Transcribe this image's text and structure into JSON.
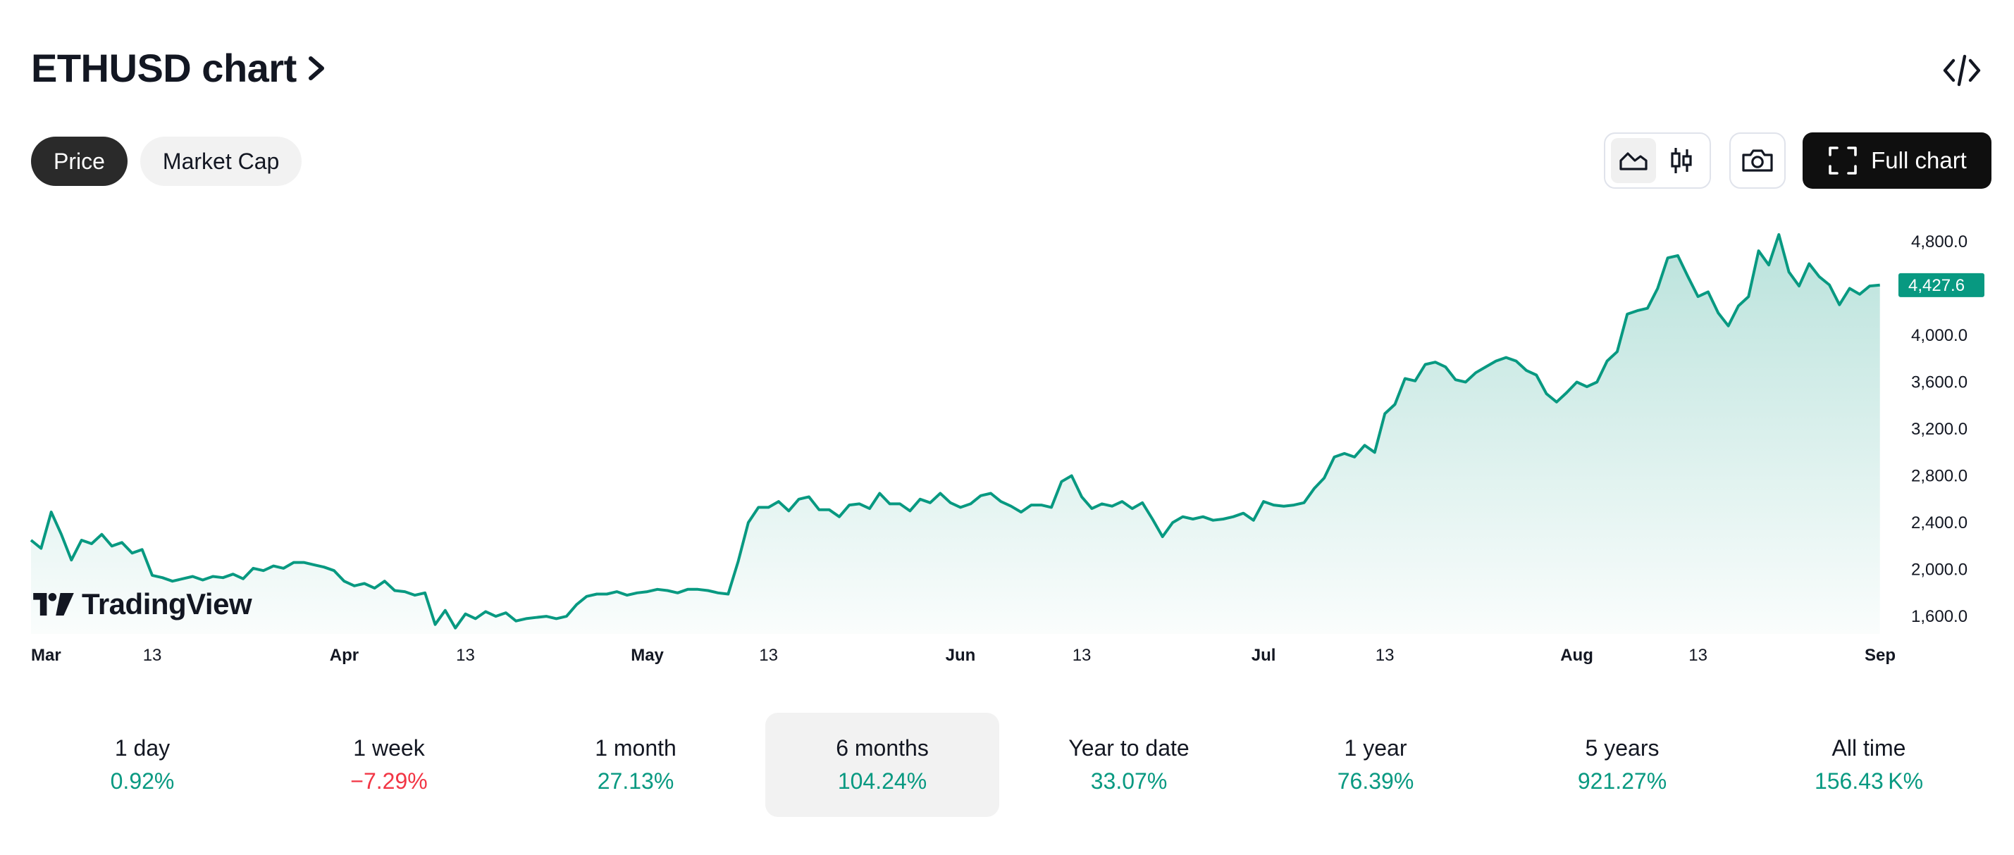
{
  "header": {
    "title": "ETHUSD chart"
  },
  "tabs": [
    {
      "label": "Price",
      "active": true
    },
    {
      "label": "Market Cap",
      "active": false
    }
  ],
  "toolbar": {
    "full_chart_label": "Full chart",
    "icons": [
      "area-chart-icon",
      "candles-icon",
      "camera-icon",
      "fullscreen-icon",
      "embed-code-icon"
    ]
  },
  "colors": {
    "line": "#089981",
    "positive": "#089981",
    "negative": "#f23645",
    "dark": "#0f0f0f"
  },
  "chart_data": {
    "type": "area",
    "title": "ETHUSD",
    "ylim": [
      1450,
      4950
    ],
    "y_ticks": [
      {
        "value": 4800,
        "label": "4,800.0"
      },
      {
        "value": 4000,
        "label": "4,000.0"
      },
      {
        "value": 3600,
        "label": "3,600.0"
      },
      {
        "value": 3200,
        "label": "3,200.0"
      },
      {
        "value": 2800,
        "label": "2,800.0"
      },
      {
        "value": 2400,
        "label": "2,400.0"
      },
      {
        "value": 2000,
        "label": "2,000.0"
      },
      {
        "value": 1600,
        "label": "1,600.0"
      }
    ],
    "last_price": 4427.6,
    "last_price_label": "4,427.6",
    "x_ticks": [
      {
        "day": 0,
        "label": "Mar",
        "month": true
      },
      {
        "day": 12,
        "label": "13",
        "month": false
      },
      {
        "day": 31,
        "label": "Apr",
        "month": true
      },
      {
        "day": 43,
        "label": "13",
        "month": false
      },
      {
        "day": 61,
        "label": "May",
        "month": true
      },
      {
        "day": 73,
        "label": "13",
        "month": false
      },
      {
        "day": 92,
        "label": "Jun",
        "month": true
      },
      {
        "day": 104,
        "label": "13",
        "month": false
      },
      {
        "day": 122,
        "label": "Jul",
        "month": true
      },
      {
        "day": 134,
        "label": "13",
        "month": false
      },
      {
        "day": 153,
        "label": "Aug",
        "month": true
      },
      {
        "day": 165,
        "label": "13",
        "month": false
      },
      {
        "day": 184,
        "label": "Sep",
        "month": true
      }
    ],
    "x_range": [
      0,
      184
    ],
    "series": [
      {
        "name": "ETHUSD",
        "points": [
          [
            0,
            2250
          ],
          [
            1,
            2180
          ],
          [
            2,
            2490
          ],
          [
            3,
            2300
          ],
          [
            4,
            2080
          ],
          [
            5,
            2250
          ],
          [
            6,
            2220
          ],
          [
            7,
            2300
          ],
          [
            8,
            2200
          ],
          [
            9,
            2230
          ],
          [
            10,
            2140
          ],
          [
            11,
            2170
          ],
          [
            12,
            1950
          ],
          [
            13,
            1930
          ],
          [
            14,
            1900
          ],
          [
            15,
            1920
          ],
          [
            16,
            1940
          ],
          [
            17,
            1910
          ],
          [
            18,
            1940
          ],
          [
            19,
            1930
          ],
          [
            20,
            1960
          ],
          [
            21,
            1920
          ],
          [
            22,
            2010
          ],
          [
            23,
            1990
          ],
          [
            24,
            2030
          ],
          [
            25,
            2010
          ],
          [
            26,
            2060
          ],
          [
            27,
            2060
          ],
          [
            28,
            2040
          ],
          [
            29,
            2020
          ],
          [
            30,
            1990
          ],
          [
            31,
            1900
          ],
          [
            32,
            1860
          ],
          [
            33,
            1880
          ],
          [
            34,
            1840
          ],
          [
            35,
            1900
          ],
          [
            36,
            1820
          ],
          [
            37,
            1810
          ],
          [
            38,
            1780
          ],
          [
            39,
            1800
          ],
          [
            40,
            1530
          ],
          [
            41,
            1650
          ],
          [
            42,
            1500
          ],
          [
            43,
            1620
          ],
          [
            44,
            1580
          ],
          [
            45,
            1640
          ],
          [
            46,
            1600
          ],
          [
            47,
            1630
          ],
          [
            48,
            1560
          ],
          [
            49,
            1580
          ],
          [
            50,
            1590
          ],
          [
            51,
            1600
          ],
          [
            52,
            1580
          ],
          [
            53,
            1600
          ],
          [
            54,
            1700
          ],
          [
            55,
            1770
          ],
          [
            56,
            1790
          ],
          [
            57,
            1790
          ],
          [
            58,
            1810
          ],
          [
            59,
            1780
          ],
          [
            60,
            1800
          ],
          [
            61,
            1810
          ],
          [
            62,
            1830
          ],
          [
            63,
            1820
          ],
          [
            64,
            1800
          ],
          [
            65,
            1830
          ],
          [
            66,
            1830
          ],
          [
            67,
            1820
          ],
          [
            68,
            1800
          ],
          [
            69,
            1790
          ],
          [
            70,
            2070
          ],
          [
            71,
            2400
          ],
          [
            72,
            2530
          ],
          [
            73,
            2530
          ],
          [
            74,
            2580
          ],
          [
            75,
            2500
          ],
          [
            76,
            2600
          ],
          [
            77,
            2620
          ],
          [
            78,
            2510
          ],
          [
            79,
            2510
          ],
          [
            80,
            2450
          ],
          [
            81,
            2550
          ],
          [
            82,
            2560
          ],
          [
            83,
            2520
          ],
          [
            84,
            2650
          ],
          [
            85,
            2560
          ],
          [
            86,
            2560
          ],
          [
            87,
            2500
          ],
          [
            88,
            2600
          ],
          [
            89,
            2570
          ],
          [
            90,
            2650
          ],
          [
            91,
            2570
          ],
          [
            92,
            2530
          ],
          [
            93,
            2560
          ],
          [
            94,
            2630
          ],
          [
            95,
            2650
          ],
          [
            96,
            2580
          ],
          [
            97,
            2540
          ],
          [
            98,
            2490
          ],
          [
            99,
            2550
          ],
          [
            100,
            2550
          ],
          [
            101,
            2530
          ],
          [
            102,
            2750
          ],
          [
            103,
            2800
          ],
          [
            104,
            2620
          ],
          [
            105,
            2520
          ],
          [
            106,
            2560
          ],
          [
            107,
            2540
          ],
          [
            108,
            2580
          ],
          [
            109,
            2520
          ],
          [
            110,
            2570
          ],
          [
            111,
            2430
          ],
          [
            112,
            2280
          ],
          [
            113,
            2400
          ],
          [
            114,
            2450
          ],
          [
            115,
            2430
          ],
          [
            116,
            2450
          ],
          [
            117,
            2420
          ],
          [
            118,
            2430
          ],
          [
            119,
            2450
          ],
          [
            120,
            2480
          ],
          [
            121,
            2420
          ],
          [
            122,
            2580
          ],
          [
            123,
            2550
          ],
          [
            124,
            2540
          ],
          [
            125,
            2550
          ],
          [
            126,
            2570
          ],
          [
            127,
            2690
          ],
          [
            128,
            2780
          ],
          [
            129,
            2960
          ],
          [
            130,
            2990
          ],
          [
            131,
            2960
          ],
          [
            132,
            3060
          ],
          [
            133,
            3000
          ],
          [
            134,
            3330
          ],
          [
            135,
            3410
          ],
          [
            136,
            3630
          ],
          [
            137,
            3610
          ],
          [
            138,
            3750
          ],
          [
            139,
            3770
          ],
          [
            140,
            3730
          ],
          [
            141,
            3620
          ],
          [
            142,
            3600
          ],
          [
            143,
            3680
          ],
          [
            144,
            3730
          ],
          [
            145,
            3780
          ],
          [
            146,
            3810
          ],
          [
            147,
            3780
          ],
          [
            148,
            3700
          ],
          [
            149,
            3660
          ],
          [
            150,
            3500
          ],
          [
            151,
            3430
          ],
          [
            152,
            3510
          ],
          [
            153,
            3600
          ],
          [
            154,
            3560
          ],
          [
            155,
            3600
          ],
          [
            156,
            3780
          ],
          [
            157,
            3860
          ],
          [
            158,
            4180
          ],
          [
            159,
            4210
          ],
          [
            160,
            4230
          ],
          [
            161,
            4400
          ],
          [
            162,
            4660
          ],
          [
            163,
            4680
          ],
          [
            164,
            4500
          ],
          [
            165,
            4330
          ],
          [
            166,
            4370
          ],
          [
            167,
            4190
          ],
          [
            168,
            4080
          ],
          [
            169,
            4250
          ],
          [
            170,
            4330
          ],
          [
            171,
            4720
          ],
          [
            172,
            4600
          ],
          [
            173,
            4860
          ],
          [
            174,
            4540
          ],
          [
            175,
            4420
          ],
          [
            176,
            4610
          ],
          [
            177,
            4500
          ],
          [
            178,
            4430
          ],
          [
            179,
            4260
          ],
          [
            180,
            4400
          ],
          [
            181,
            4350
          ],
          [
            182,
            4420
          ],
          [
            183,
            4428
          ]
        ]
      }
    ]
  },
  "branding": {
    "name": "TradingView"
  },
  "performance": [
    {
      "label": "1 day",
      "value": "0.92%",
      "trend": "up",
      "active": false
    },
    {
      "label": "1 week",
      "value": "−7.29%",
      "trend": "down",
      "active": false
    },
    {
      "label": "1 month",
      "value": "27.13%",
      "trend": "up",
      "active": false
    },
    {
      "label": "6 months",
      "value": "104.24%",
      "trend": "up",
      "active": true
    },
    {
      "label": "Year to date",
      "value": "33.07%",
      "trend": "up",
      "active": false
    },
    {
      "label": "1 year",
      "value": "76.39%",
      "trend": "up",
      "active": false
    },
    {
      "label": "5 years",
      "value": "921.27%",
      "trend": "up",
      "active": false
    },
    {
      "label": "All time",
      "value": "156.43 K%",
      "trend": "up",
      "active": false
    }
  ]
}
